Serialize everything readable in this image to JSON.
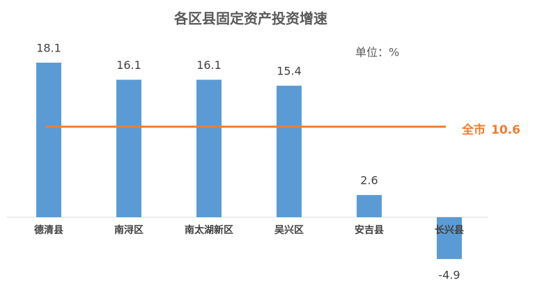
{
  "chart_data": {
    "type": "bar",
    "title": "各区县固定资产投资增速",
    "unit_label": "单位：%",
    "categories": [
      "德清县",
      "南浔区",
      "南太湖新区",
      "吴兴区",
      "安吉县",
      "长兴县"
    ],
    "values": [
      18.1,
      16.1,
      16.1,
      15.4,
      2.6,
      -4.9
    ],
    "color": "#5b9bd5",
    "reference": {
      "label": "全市",
      "value": 10.6,
      "color": "#ed7d31"
    }
  }
}
